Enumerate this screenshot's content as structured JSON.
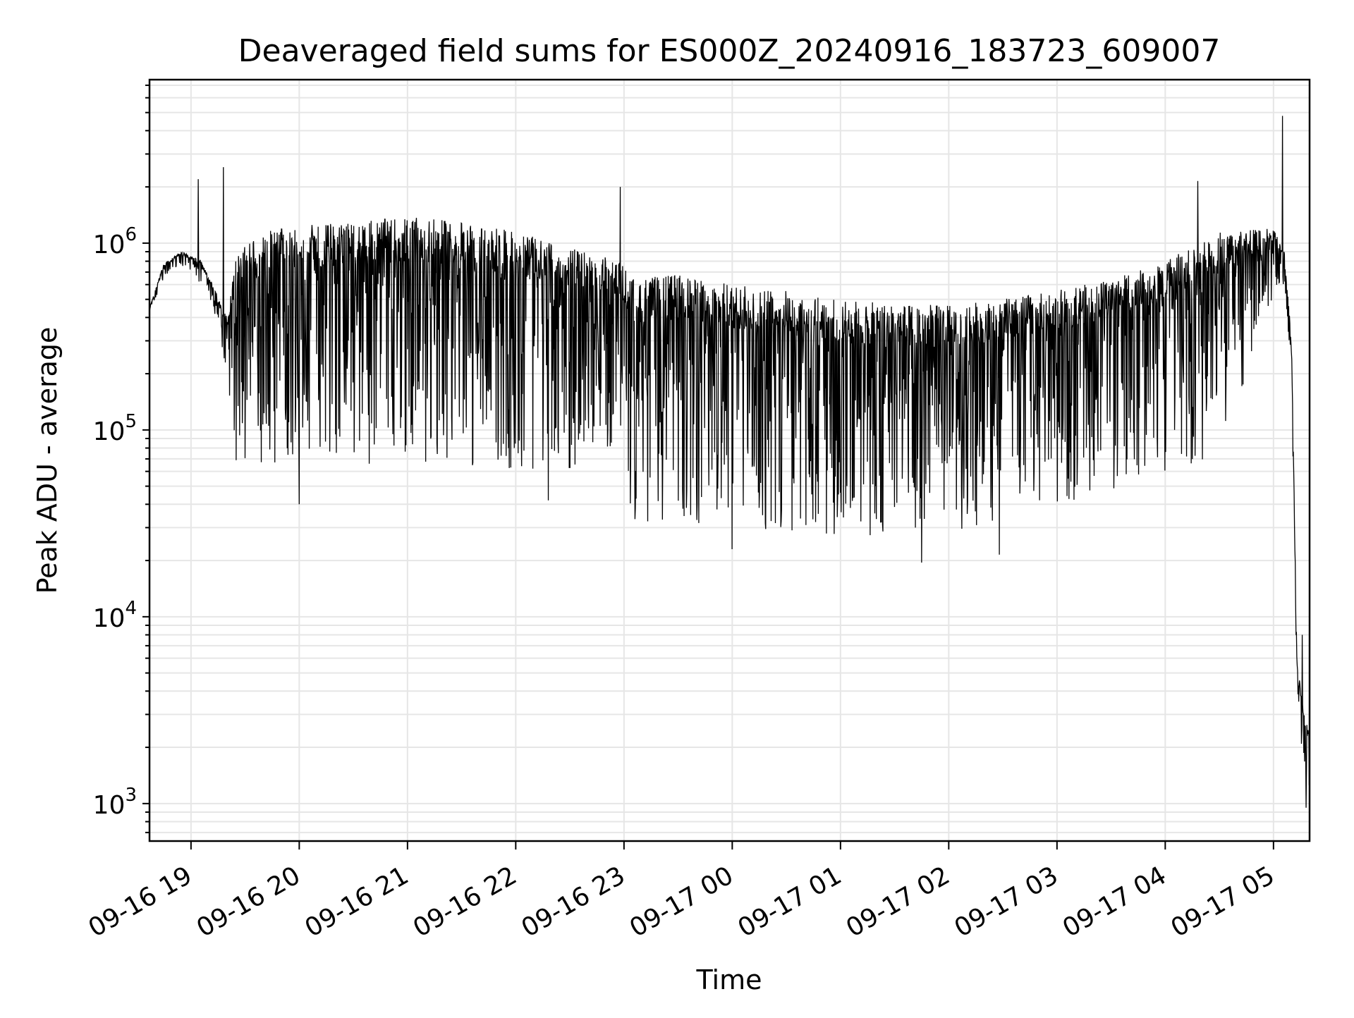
{
  "chart_data": {
    "type": "line",
    "title": "Deaveraged field sums for ES000Z_20240916_183723_609007",
    "xlabel": "Time",
    "ylabel": "Peak ADU - average",
    "yscale": "log",
    "ylim": [
      630,
      7500000
    ],
    "xlim": [
      "09-16 18:37",
      "09-17 05:20"
    ],
    "grid": true,
    "line_color": "#000000",
    "grid_color": "#e6e6e6",
    "x_ticks": [
      "09-16 19",
      "09-16 20",
      "09-16 21",
      "09-16 22",
      "09-16 23",
      "09-17 00",
      "09-17 01",
      "09-17 02",
      "09-17 03",
      "09-17 04",
      "09-17 05"
    ],
    "y_ticks": [
      {
        "base": "10",
        "exp": "3",
        "value": 1000
      },
      {
        "base": "10",
        "exp": "4",
        "value": 10000
      },
      {
        "base": "10",
        "exp": "5",
        "value": 100000
      },
      {
        "base": "10",
        "exp": "6",
        "value": 1000000
      }
    ],
    "series": [
      {
        "upper_envelope": [
          [
            "09-16 18:37",
            450000
          ],
          [
            "09-16 18:45",
            780000
          ],
          [
            "09-16 18:55",
            900000
          ],
          [
            "09-16 19:05",
            820000
          ],
          [
            "09-16 19:12",
            600000
          ],
          [
            "09-16 19:20",
            400000
          ],
          [
            "09-16 19:25",
            900000
          ],
          [
            "09-16 19:40",
            1150000
          ],
          [
            "09-16 20:00",
            1250000
          ],
          [
            "09-16 20:30",
            1300000
          ],
          [
            "09-16 21:00",
            1380000
          ],
          [
            "09-16 21:30",
            1300000
          ],
          [
            "09-16 22:00",
            1150000
          ],
          [
            "09-16 22:30",
            950000
          ],
          [
            "09-16 22:58",
            800000
          ],
          [
            "09-16 23:05",
            650000
          ],
          [
            "09-16 23:30",
            680000
          ],
          [
            "09-17 00:00",
            600000
          ],
          [
            "09-17 00:30",
            560000
          ],
          [
            "09-17 01:00",
            500000
          ],
          [
            "09-17 01:30",
            470000
          ],
          [
            "09-17 02:00",
            470000
          ],
          [
            "09-17 02:30",
            500000
          ],
          [
            "09-17 03:00",
            560000
          ],
          [
            "09-17 03:30",
            640000
          ],
          [
            "09-17 04:00",
            800000
          ],
          [
            "09-17 04:30",
            1150000
          ],
          [
            "09-17 05:00",
            1200000
          ],
          [
            "09-17 05:06",
            900000
          ],
          [
            "09-17 05:10",
            300000
          ],
          [
            "09-17 05:13",
            6000
          ],
          [
            "09-17 05:17",
            3000
          ],
          [
            "09-17 05:20",
            2500
          ]
        ],
        "lower_envelope": [
          [
            "09-16 18:37",
            420000
          ],
          [
            "09-16 18:45",
            650000
          ],
          [
            "09-16 18:55",
            750000
          ],
          [
            "09-16 19:05",
            600000
          ],
          [
            "09-16 19:12",
            450000
          ],
          [
            "09-16 19:20",
            200000
          ],
          [
            "09-16 19:25",
            65000
          ],
          [
            "09-16 19:40",
            60000
          ],
          [
            "09-16 20:00",
            65000
          ],
          [
            "09-16 20:30",
            62000
          ],
          [
            "09-16 21:00",
            62000
          ],
          [
            "09-16 21:30",
            60000
          ],
          [
            "09-16 22:00",
            55000
          ],
          [
            "09-16 22:30",
            55000
          ],
          [
            "09-16 22:58",
            80000
          ],
          [
            "09-16 23:05",
            30000
          ],
          [
            "09-16 23:30",
            30000
          ],
          [
            "09-17 00:00",
            28000
          ],
          [
            "09-17 00:30",
            27000
          ],
          [
            "09-17 01:00",
            25000
          ],
          [
            "09-17 01:30",
            23000
          ],
          [
            "09-17 02:00",
            25000
          ],
          [
            "09-17 02:30",
            30000
          ],
          [
            "09-17 03:00",
            38000
          ],
          [
            "09-17 03:30",
            45000
          ],
          [
            "09-17 04:00",
            55000
          ],
          [
            "09-17 04:30",
            70000
          ],
          [
            "09-17 05:00",
            500000
          ],
          [
            "09-17 05:06",
            600000
          ],
          [
            "09-17 05:10",
            200000
          ],
          [
            "09-17 05:13",
            3500
          ],
          [
            "09-17 05:17",
            1500
          ],
          [
            "09-17 05:20",
            950
          ]
        ],
        "spikes": [
          [
            "09-16 19:04",
            2200000
          ],
          [
            "09-16 19:18",
            2550000
          ],
          [
            "09-16 22:58",
            2000000
          ],
          [
            "09-17 04:18",
            2150000
          ],
          [
            "09-17 05:05",
            4800000
          ],
          [
            "09-16 20:00",
            40000
          ],
          [
            "09-16 22:18",
            42000
          ],
          [
            "09-17 00:00",
            23000
          ],
          [
            "09-17 01:45",
            19500
          ],
          [
            "09-17 02:28",
            21500
          ],
          [
            "09-17 05:16",
            8000
          ],
          [
            "09-17 05:18",
            950
          ]
        ]
      }
    ]
  }
}
